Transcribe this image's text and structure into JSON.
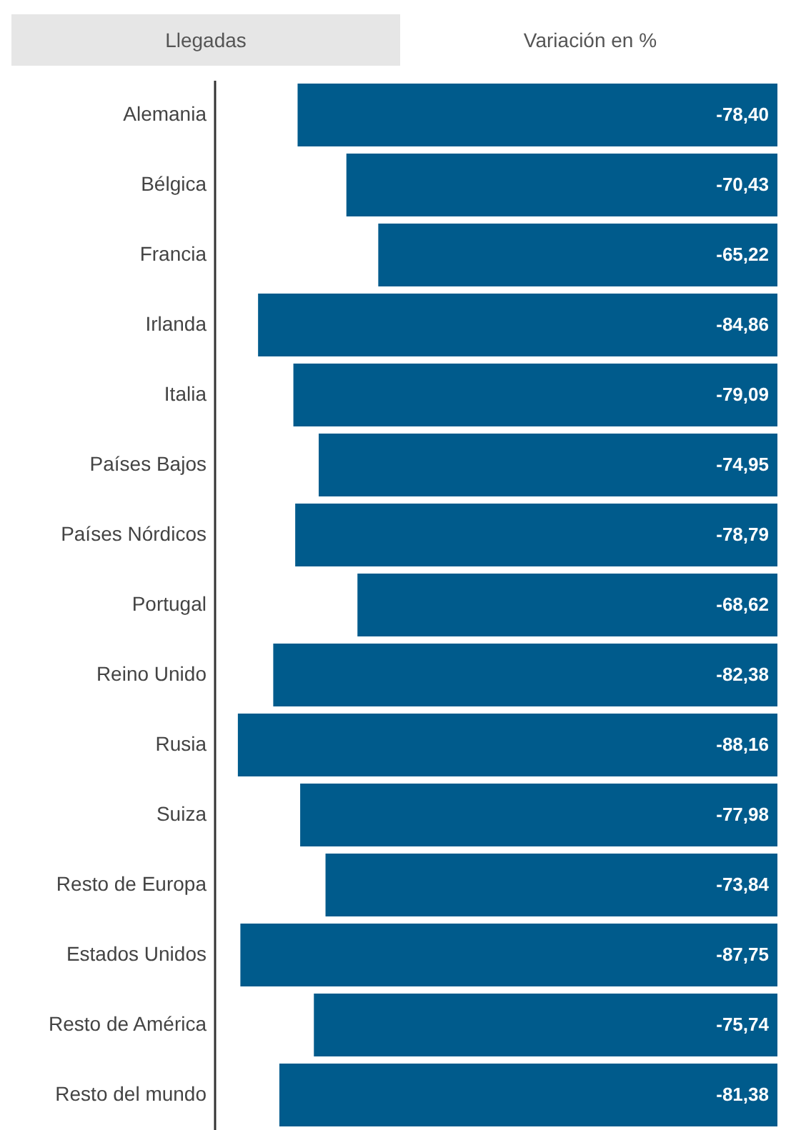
{
  "chart_data": {
    "type": "bar",
    "orientation": "horizontal",
    "annotations": [
      "Llegadas",
      "Variación en %"
    ],
    "categories": [
      "Alemania",
      "Bélgica",
      "Francia",
      "Irlanda",
      "Italia",
      "Países Bajos",
      "Países Nórdicos",
      "Portugal",
      "Reino Unido",
      "Rusia",
      "Suiza",
      "Resto de Europa",
      "Estados Unidos",
      "Resto de América",
      "Resto del mundo"
    ],
    "values": [
      -78.4,
      -70.43,
      -65.22,
      -84.86,
      -79.09,
      -74.95,
      -78.79,
      -68.62,
      -82.38,
      -88.16,
      -77.98,
      -73.84,
      -87.75,
      -75.74,
      -81.38
    ],
    "value_labels": [
      "-78,40",
      "-70,43",
      "-65,22",
      "-84,86",
      "-79,09",
      "-74,95",
      "-78,79",
      "-68,62",
      "-82,38",
      "-88,16",
      "-77,98",
      "-73,84",
      "-87,75",
      "-75,74",
      "-81,38"
    ],
    "color": "#005b8c",
    "xlim": [
      -92,
      0
    ]
  }
}
